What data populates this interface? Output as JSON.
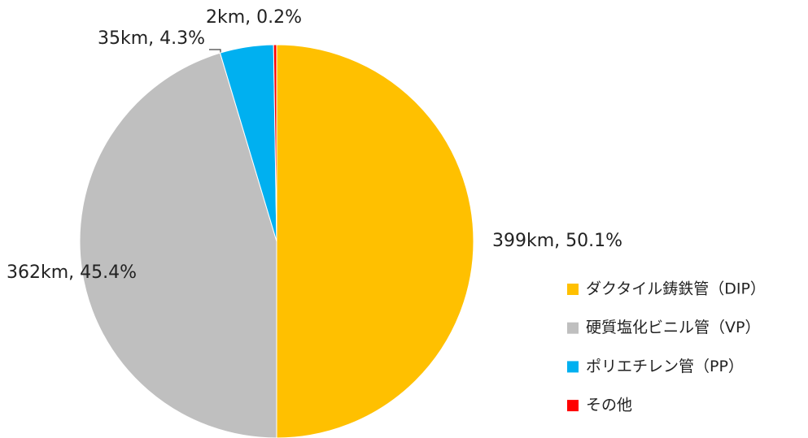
{
  "chart_data": {
    "type": "pie",
    "categories": [
      "ダクタイル鋳鉄管（DIP）",
      "硬質塩化ビニル管（VP）",
      "ポリエチレン管（PP）",
      "その他"
    ],
    "values": [
      399,
      362,
      35,
      2
    ],
    "value_labels": [
      "399km, 50.1%",
      "362km, 45.4%",
      "35km, 4.3%",
      "2km, 0.2%"
    ],
    "colors": [
      "#FFC000",
      "#BFBFBF",
      "#00B0F0",
      "#FF0000"
    ],
    "legend": "right"
  }
}
